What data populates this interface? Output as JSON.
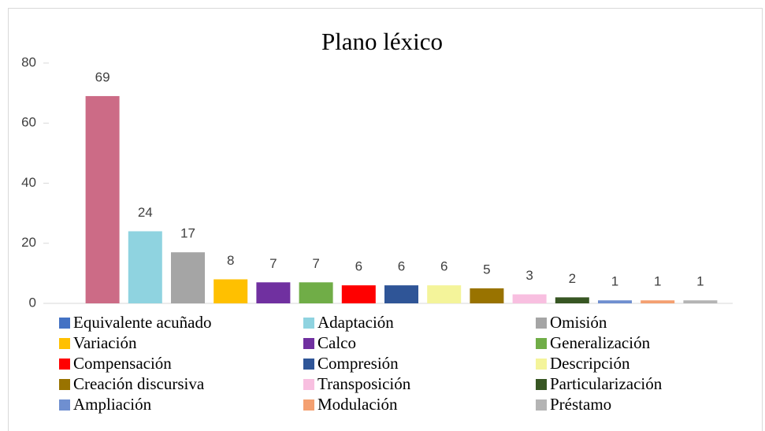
{
  "chart_data": {
    "type": "bar",
    "title": "Plano léxico",
    "categories": [
      "Equivalente acuñado",
      "Adaptación",
      "Omisión",
      "Variación",
      "Calco",
      "Generalización",
      "Compensación",
      "Compresión",
      "Descripción",
      "Creación discursiva",
      "Transposición",
      "Particularización",
      "Ampliación",
      "Modulación",
      "Préstamo"
    ],
    "values": [
      69,
      24,
      17,
      8,
      7,
      7,
      6,
      6,
      6,
      5,
      3,
      2,
      1,
      1,
      1
    ],
    "colors": [
      "#cc6b86",
      "#8fd3e0",
      "#a5a5a5",
      "#ffc000",
      "#7030a0",
      "#70ad47",
      "#ff0000",
      "#2f5597",
      "#f4f49a",
      "#997300",
      "#f8bfe0",
      "#375623",
      "#6f8fd0",
      "#f4a071",
      "#b4b4b4"
    ],
    "legend_colors": [
      "#4472c4",
      "#8fd3e0",
      "#a5a5a5",
      "#ffc000",
      "#7030a0",
      "#70ad47",
      "#ff0000",
      "#2f5597",
      "#f4f49a",
      "#997300",
      "#f8bfe0",
      "#375623",
      "#6f8fd0",
      "#f4a071",
      "#b4b4b4"
    ],
    "ylim": [
      0,
      80
    ],
    "yticks": [
      0,
      20,
      40,
      60,
      80
    ],
    "legend": "bottom"
  }
}
